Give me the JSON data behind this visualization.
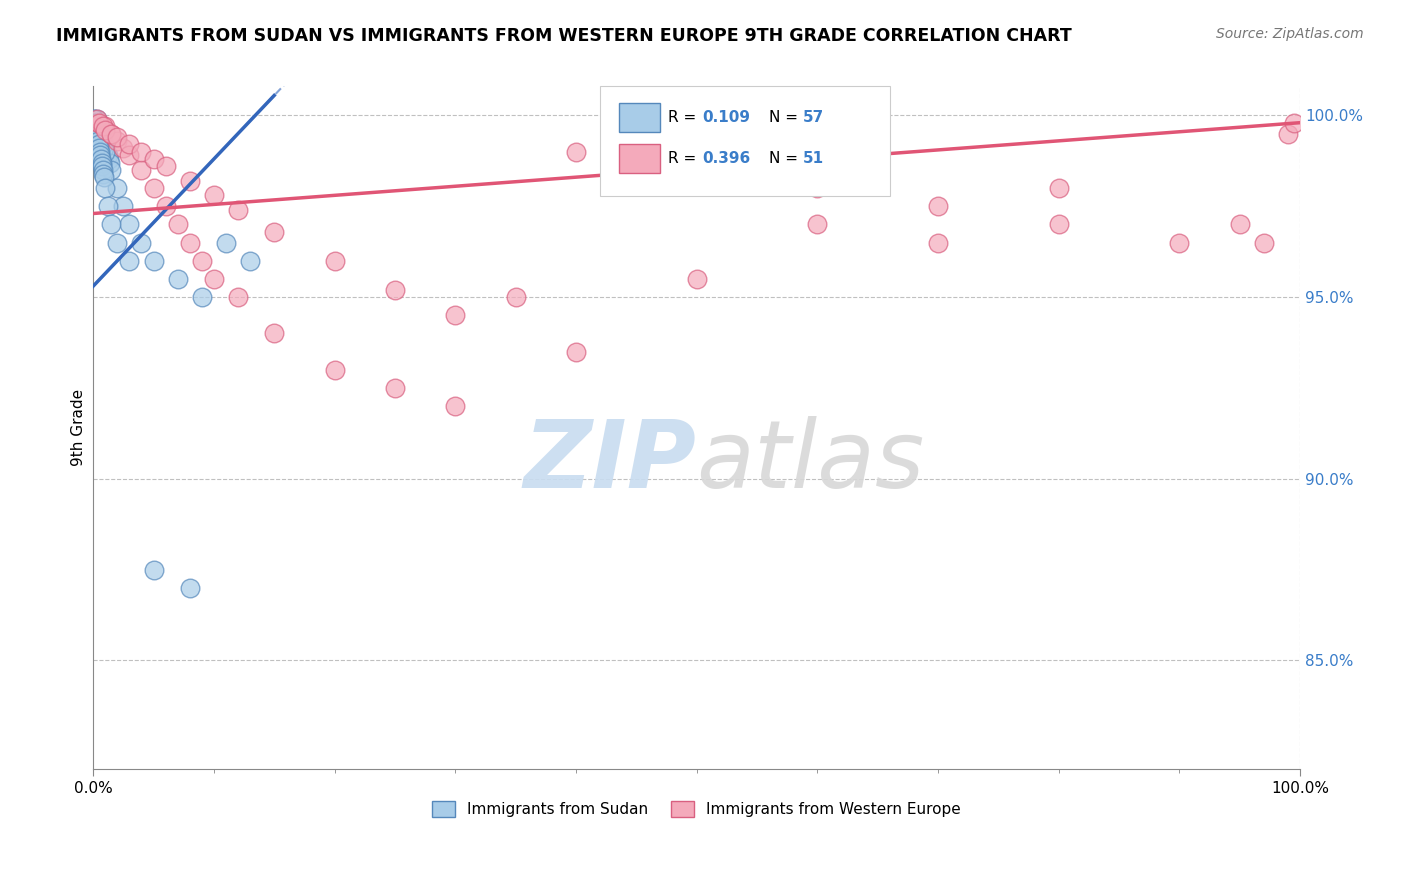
{
  "title": "IMMIGRANTS FROM SUDAN VS IMMIGRANTS FROM WESTERN EUROPE 9TH GRADE CORRELATION CHART",
  "source_text": "Source: ZipAtlas.com",
  "ylabel": "9th Grade",
  "legend_blue_R": "0.109",
  "legend_blue_N": "57",
  "legend_pink_R": "0.396",
  "legend_pink_N": "51",
  "legend_blue_label": "Immigrants from Sudan",
  "legend_pink_label": "Immigrants from Western Europe",
  "blue_fill": "#A8CCE8",
  "blue_edge": "#5588BB",
  "pink_fill": "#F4AABB",
  "pink_edge": "#D96080",
  "trend_blue_color": "#3366BB",
  "trend_pink_color": "#E05575",
  "accent_color": "#3A7DC9",
  "watermark_color": "#C8DCF0",
  "sudan_x": [
    0.2,
    0.3,
    0.4,
    0.5,
    0.6,
    0.7,
    0.8,
    0.9,
    1.0,
    1.1,
    1.2,
    1.3,
    1.4,
    0.1,
    0.2,
    0.3,
    0.4,
    0.5,
    0.6,
    0.7,
    0.8,
    0.9,
    1.0,
    1.5,
    2.0,
    2.5,
    3.0,
    4.0,
    5.0,
    7.0,
    9.0,
    11.0,
    13.0,
    0.1,
    0.15,
    0.2,
    0.25,
    0.3,
    0.35,
    0.4,
    0.45,
    0.5,
    0.55,
    0.6,
    0.65,
    0.7,
    0.75,
    0.8,
    0.85,
    0.9,
    1.0,
    1.2,
    1.5,
    2.0,
    3.0,
    5.0,
    8.0
  ],
  "sudan_y": [
    99.8,
    99.9,
    99.7,
    99.6,
    99.5,
    99.4,
    99.3,
    99.2,
    99.1,
    99.0,
    98.9,
    98.8,
    98.7,
    99.9,
    99.8,
    99.7,
    99.6,
    99.5,
    99.4,
    99.3,
    99.2,
    99.1,
    99.0,
    98.5,
    98.0,
    97.5,
    97.0,
    96.5,
    96.0,
    95.5,
    95.0,
    96.5,
    96.0,
    99.9,
    99.8,
    99.7,
    99.6,
    99.5,
    99.4,
    99.3,
    99.2,
    99.1,
    99.0,
    98.9,
    98.8,
    98.7,
    98.6,
    98.5,
    98.4,
    98.3,
    98.0,
    97.5,
    97.0,
    96.5,
    96.0,
    87.5,
    87.0
  ],
  "western_x": [
    0.5,
    1.0,
    1.5,
    2.0,
    2.5,
    3.0,
    4.0,
    5.0,
    6.0,
    7.0,
    8.0,
    9.0,
    10.0,
    12.0,
    15.0,
    20.0,
    25.0,
    30.0,
    35.0,
    40.0,
    50.0,
    60.0,
    70.0,
    80.0,
    90.0,
    95.0,
    97.0,
    99.0,
    0.3,
    0.5,
    0.8,
    1.0,
    1.5,
    2.0,
    3.0,
    4.0,
    5.0,
    6.0,
    8.0,
    10.0,
    12.0,
    15.0,
    20.0,
    25.0,
    30.0,
    40.0,
    50.0,
    60.0,
    70.0,
    80.0,
    99.5
  ],
  "western_y": [
    99.8,
    99.7,
    99.5,
    99.3,
    99.1,
    98.9,
    98.5,
    98.0,
    97.5,
    97.0,
    96.5,
    96.0,
    95.5,
    95.0,
    94.0,
    93.0,
    92.5,
    92.0,
    95.0,
    99.0,
    98.5,
    98.0,
    97.5,
    97.0,
    96.5,
    97.0,
    96.5,
    99.5,
    99.9,
    99.8,
    99.7,
    99.6,
    99.5,
    99.4,
    99.2,
    99.0,
    98.8,
    98.6,
    98.2,
    97.8,
    97.4,
    96.8,
    96.0,
    95.2,
    94.5,
    93.5,
    95.5,
    97.0,
    96.5,
    98.0,
    99.8
  ]
}
